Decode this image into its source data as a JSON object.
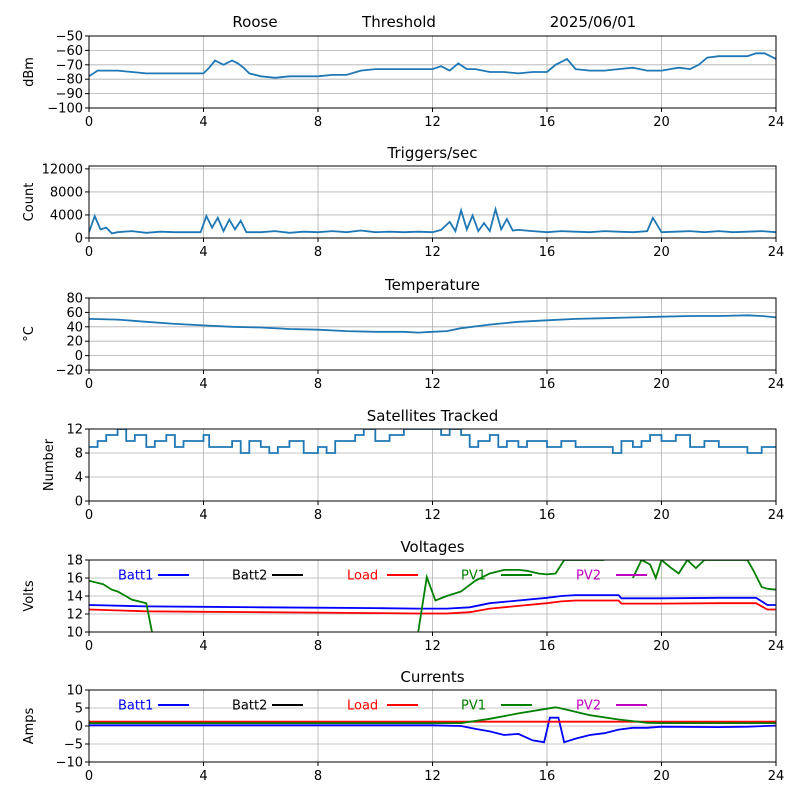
{
  "header": {
    "station": "Roose",
    "mode": "Threshold",
    "date": "2025/06/01"
  },
  "colors": {
    "trace": "#1f77b4",
    "grid": "#b0b0b0",
    "batt1": "#0000ff",
    "batt2": "#000000",
    "load": "#ff0000",
    "pv1": "#008000",
    "pv2": "#bf00bf"
  },
  "chart_data": [
    {
      "id": "signal",
      "type": "line",
      "title": "",
      "xlabel": "",
      "ylabel": "dBm",
      "xlim": [
        0,
        24
      ],
      "ylim": [
        -100,
        -50
      ],
      "grid": true,
      "xticks": [
        0,
        4,
        8,
        12,
        16,
        20,
        24
      ],
      "yticks": [
        -100,
        -90,
        -80,
        -70,
        -60,
        -50
      ],
      "series": [
        {
          "color": "trace",
          "x": [
            0,
            0.3,
            0.6,
            1,
            1.5,
            2,
            2.5,
            3,
            3.5,
            4,
            4.2,
            4.4,
            4.7,
            5,
            5.2,
            5.4,
            5.6,
            6,
            6.5,
            7,
            7.5,
            8,
            8.5,
            9,
            9.5,
            10,
            10.5,
            11,
            11.5,
            12,
            12.3,
            12.6,
            12.9,
            13.2,
            13.5,
            14,
            14.5,
            15,
            15.5,
            16,
            16.3,
            16.7,
            17,
            17.5,
            18,
            18.5,
            19,
            19.5,
            20,
            20.3,
            20.6,
            21,
            21.3,
            21.6,
            22,
            22.5,
            23,
            23.3,
            23.6,
            24
          ],
          "y": [
            -78,
            -74,
            -74,
            -74,
            -75,
            -76,
            -76,
            -76,
            -76,
            -76,
            -72,
            -67,
            -70,
            -67,
            -69,
            -72,
            -76,
            -78,
            -79,
            -78,
            -78,
            -78,
            -77,
            -77,
            -74,
            -73,
            -73,
            -73,
            -73,
            -73,
            -71,
            -74,
            -69,
            -73,
            -73,
            -75,
            -75,
            -76,
            -75,
            -75,
            -70,
            -66,
            -73,
            -74,
            -74,
            -73,
            -72,
            -74,
            -74,
            -73,
            -72,
            -73,
            -70,
            -65,
            -64,
            -64,
            -64,
            -62,
            -62,
            -66
          ]
        }
      ]
    },
    {
      "id": "triggers",
      "type": "line",
      "title": "Triggers/sec",
      "xlabel": "",
      "ylabel": "Count",
      "xlim": [
        0,
        24
      ],
      "ylim": [
        0,
        12500
      ],
      "grid": true,
      "xticks": [
        0,
        4,
        8,
        12,
        16,
        20,
        24
      ],
      "yticks": [
        0,
        4000,
        8000,
        12000
      ],
      "series": [
        {
          "color": "trace",
          "x": [
            0,
            0.2,
            0.4,
            0.6,
            0.8,
            1,
            1.5,
            2,
            2.5,
            3,
            3.5,
            3.9,
            4.1,
            4.3,
            4.5,
            4.7,
            4.9,
            5.1,
            5.3,
            5.5,
            6,
            6.5,
            7,
            7.5,
            8,
            8.5,
            9,
            9.5,
            10,
            10.5,
            11,
            11.5,
            12,
            12.3,
            12.6,
            12.8,
            13,
            13.2,
            13.4,
            13.6,
            13.8,
            14,
            14.2,
            14.4,
            14.6,
            14.8,
            15,
            15.5,
            16,
            16.5,
            17,
            17.5,
            18,
            18.5,
            19,
            19.5,
            19.7,
            20,
            20.5,
            21,
            21.5,
            22,
            22.5,
            23,
            23.5,
            24
          ],
          "y": [
            1000,
            3800,
            1500,
            1800,
            800,
            1000,
            1200,
            900,
            1100,
            1000,
            1000,
            1000,
            3800,
            1800,
            3500,
            1200,
            3200,
            1500,
            3000,
            1000,
            1000,
            1200,
            900,
            1100,
            1000,
            1200,
            1000,
            1300,
            1000,
            1100,
            1000,
            1100,
            1000,
            1400,
            2800,
            1200,
            4800,
            1500,
            3900,
            1200,
            2600,
            1200,
            5000,
            1500,
            3300,
            1300,
            1400,
            1200,
            1000,
            1200,
            1100,
            1000,
            1200,
            1100,
            1000,
            1200,
            3500,
            1000,
            1100,
            1200,
            1000,
            1200,
            1000,
            1100,
            1200,
            1000
          ]
        }
      ]
    },
    {
      "id": "temperature",
      "type": "line",
      "title": "Temperature",
      "xlabel": "",
      "ylabel": "°C",
      "xlim": [
        0,
        24
      ],
      "ylim": [
        -20,
        80
      ],
      "grid": true,
      "xticks": [
        0,
        4,
        8,
        12,
        16,
        20,
        24
      ],
      "yticks": [
        -20,
        0,
        20,
        40,
        60,
        80
      ],
      "series": [
        {
          "color": "trace",
          "x": [
            0,
            1,
            2,
            3,
            4,
            5,
            6,
            7,
            8,
            9,
            10,
            11,
            11.5,
            12,
            12.5,
            13,
            14,
            15,
            16,
            17,
            18,
            19,
            20,
            21,
            22,
            23,
            23.5,
            24
          ],
          "y": [
            51,
            50,
            47,
            44,
            42,
            40,
            39,
            37,
            36,
            34,
            33,
            33,
            32,
            33,
            34,
            38,
            43,
            47,
            49,
            51,
            52,
            53,
            54,
            55,
            55,
            56,
            55,
            53
          ]
        }
      ]
    },
    {
      "id": "satellites",
      "type": "line",
      "title": "Satellites Tracked",
      "xlabel": "",
      "ylabel": "Number",
      "xlim": [
        0,
        24
      ],
      "ylim": [
        0,
        12
      ],
      "grid": true,
      "xticks": [
        0,
        4,
        8,
        12,
        16,
        20,
        24
      ],
      "yticks": [
        0,
        4,
        8,
        12
      ],
      "series": [
        {
          "color": "trace",
          "step": true,
          "x": [
            0,
            0.3,
            0.6,
            1,
            1.3,
            1.6,
            2,
            2.3,
            2.7,
            3,
            3.3,
            4,
            4.2,
            5,
            5.3,
            5.6,
            6,
            6.3,
            6.6,
            7,
            7.5,
            8,
            8.3,
            8.6,
            9,
            9.3,
            9.6,
            10,
            10.5,
            11,
            11.5,
            12,
            12.3,
            12.6,
            13,
            13.3,
            13.6,
            14,
            14.3,
            14.6,
            15,
            15.3,
            16,
            16.5,
            17,
            17.5,
            18,
            18.3,
            18.6,
            19,
            19.3,
            19.6,
            20,
            20.5,
            21,
            21.5,
            22,
            22.5,
            23,
            23.5,
            24
          ],
          "y": [
            9,
            10,
            11,
            12,
            10,
            11,
            9,
            10,
            11,
            9,
            10,
            11,
            9,
            10,
            8,
            10,
            9,
            8,
            9,
            10,
            8,
            9,
            8,
            10,
            10,
            11,
            12,
            10,
            11,
            12,
            12,
            12,
            11,
            12,
            11,
            9,
            10,
            11,
            9,
            10,
            9,
            10,
            9,
            10,
            9,
            9,
            9,
            8,
            10,
            9,
            10,
            11,
            10,
            11,
            9,
            10,
            9,
            9,
            8,
            9,
            9
          ]
        }
      ]
    },
    {
      "id": "voltages",
      "type": "line",
      "title": "Voltages",
      "xlabel": "",
      "ylabel": "Volts",
      "xlim": [
        0,
        24
      ],
      "ylim": [
        10,
        18
      ],
      "grid": true,
      "xticks": [
        0,
        4,
        8,
        12,
        16,
        20,
        24
      ],
      "yticks": [
        10,
        12,
        14,
        16,
        18
      ],
      "legend": [
        "Batt1",
        "Batt2",
        "Load",
        "PV1",
        "PV2"
      ],
      "legend_placement": "top-inside",
      "series": [
        {
          "name": "Batt1",
          "color": "batt1",
          "x": [
            0,
            2,
            4,
            6,
            8,
            10,
            11.5,
            12.5,
            13.3,
            14,
            15,
            16,
            16.5,
            17,
            18,
            18.5,
            18.6,
            19,
            20,
            22,
            23.3,
            23.7,
            24
          ],
          "y": [
            13.0,
            12.85,
            12.8,
            12.75,
            12.7,
            12.65,
            12.6,
            12.6,
            12.75,
            13.2,
            13.5,
            13.8,
            14.0,
            14.1,
            14.1,
            14.1,
            13.75,
            13.75,
            13.75,
            13.8,
            13.8,
            13.0,
            13.0
          ]
        },
        {
          "name": "Load",
          "color": "load",
          "x": [
            0,
            2,
            4,
            6,
            8,
            10,
            11.5,
            12.5,
            13.3,
            14,
            15,
            16,
            16.5,
            17,
            18,
            18.5,
            18.6,
            19,
            20,
            22,
            23.3,
            23.7,
            24
          ],
          "y": [
            12.5,
            12.3,
            12.25,
            12.2,
            12.15,
            12.1,
            12.05,
            12.05,
            12.2,
            12.6,
            12.9,
            13.2,
            13.4,
            13.5,
            13.5,
            13.5,
            13.15,
            13.15,
            13.15,
            13.2,
            13.2,
            12.5,
            12.5
          ]
        },
        {
          "name": "PV1",
          "color": "pv1",
          "x": [
            0,
            0.5,
            0.8,
            1,
            1.5,
            2,
            2.2
          ],
          "y": [
            15.7,
            15.3,
            14.7,
            14.5,
            13.6,
            13.2,
            10.0
          ]
        },
        {
          "name": "PV1",
          "color": "pv1",
          "x": [
            11.5,
            11.8,
            12.1,
            12.5,
            13,
            13.5,
            14,
            14.5,
            15,
            15.3,
            15.7,
            16,
            16.3,
            16.6,
            17.8,
            18
          ],
          "y": [
            10.0,
            16.1,
            13.5,
            14.0,
            14.5,
            15.7,
            16.5,
            16.9,
            16.9,
            16.8,
            16.5,
            16.4,
            16.5,
            18.0,
            18.0,
            18.0
          ]
        },
        {
          "name": "PV1",
          "color": "pv1",
          "x": [
            19.0,
            19.3,
            19.6,
            19.8,
            20.0,
            20.3,
            20.6,
            20.9,
            21.2,
            21.5,
            21.8,
            23.0,
            23.2,
            23.5,
            23.7,
            24
          ],
          "y": [
            16.0,
            18.0,
            17.5,
            16.0,
            18.0,
            17.2,
            16.5,
            18.0,
            17.1,
            18.0,
            18.0,
            18.0,
            16.9,
            15.0,
            14.8,
            14.7
          ]
        }
      ]
    },
    {
      "id": "currents",
      "type": "line",
      "title": "Currents",
      "xlabel": "",
      "ylabel": "Amps",
      "xlim": [
        0,
        24
      ],
      "ylim": [
        -10,
        10
      ],
      "grid": true,
      "xticks": [
        0,
        4,
        8,
        12,
        16,
        20,
        24
      ],
      "yticks": [
        -10,
        -5,
        0,
        5,
        10
      ],
      "legend": [
        "Batt1",
        "Batt2",
        "Load",
        "PV1",
        "PV2"
      ],
      "legend_placement": "top-inside",
      "series": [
        {
          "name": "Batt1",
          "color": "batt1",
          "x": [
            0,
            4,
            8,
            12,
            13,
            13.5,
            14,
            14.5,
            15,
            15.5,
            15.9,
            16.1,
            16.4,
            16.6,
            17,
            17.5,
            18,
            18.5,
            19,
            19.5,
            20,
            22,
            23,
            24
          ],
          "y": [
            0.2,
            0.2,
            0.2,
            0.2,
            0.0,
            -0.8,
            -1.5,
            -2.5,
            -2.2,
            -4.0,
            -4.5,
            2.3,
            2.3,
            -4.5,
            -3.5,
            -2.5,
            -2.0,
            -1.0,
            -0.5,
            -0.5,
            -0.2,
            -0.3,
            -0.2,
            0.1
          ]
        },
        {
          "name": "Load",
          "color": "load",
          "x": [
            0,
            4,
            8,
            12,
            16,
            20,
            24
          ],
          "y": [
            1.2,
            1.2,
            1.2,
            1.2,
            1.2,
            1.2,
            1.2
          ]
        },
        {
          "name": "PV1",
          "color": "pv1",
          "x": [
            0,
            12,
            13,
            14,
            15,
            16,
            16.3,
            16.7,
            17.5,
            18.5,
            19.5,
            20,
            21,
            22,
            23,
            24
          ],
          "y": [
            0.8,
            0.8,
            0.8,
            2.0,
            3.5,
            4.8,
            5.2,
            4.5,
            3.0,
            1.8,
            0.9,
            0.8,
            0.8,
            0.8,
            0.8,
            0.8
          ]
        }
      ]
    }
  ]
}
